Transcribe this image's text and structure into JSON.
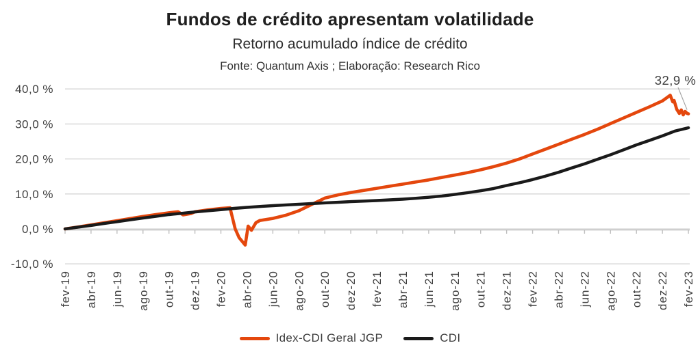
{
  "header": {
    "title": "Fundos de crédito apresentam volatilidade",
    "subtitle": "Retorno acumulado índice de crédito",
    "source": "Fonte: Quantum Axis ; Elaboração: Research Rico"
  },
  "legend": [
    {
      "name": "Idex-CDI Geral JGP",
      "color": "#E4470D"
    },
    {
      "name": "CDI",
      "color": "#1A1A1A"
    }
  ],
  "colors": {
    "gridline": "#DCDCDC",
    "axis": "#BFBFBF",
    "axis_text": "#404040",
    "leader_line": "#A6A6A6"
  },
  "chart_data": {
    "type": "line",
    "title": "Fundos de crédito apresentam volatilidade",
    "subtitle": "Retorno acumulado índice de crédito",
    "source": "Fonte: Quantum Axis ; Elaboração: Research Rico",
    "x_unit": "months since fev-19 (0 = fev-19, 48 = fev-23)",
    "y_unit": "cumulative return, %",
    "ylim": [
      -10,
      40
    ],
    "grid": "horizontal-only",
    "legend_position": "bottom",
    "x_tick_labels": [
      "fev-19",
      "abr-19",
      "jun-19",
      "ago-19",
      "out-19",
      "dez-19",
      "fev-20",
      "abr-20",
      "jun-20",
      "ago-20",
      "out-20",
      "dez-20",
      "fev-21",
      "abr-21",
      "jun-21",
      "ago-21",
      "out-21",
      "dez-21",
      "fev-22",
      "abr-22",
      "jun-22",
      "ago-22",
      "out-22",
      "dez-22",
      "fev-23"
    ],
    "y_ticks": [
      {
        "value": 40,
        "label": "40,0 %"
      },
      {
        "value": 30,
        "label": "30,0 %"
      },
      {
        "value": 20,
        "label": "20,0 %"
      },
      {
        "value": 10,
        "label": "10,0 %"
      },
      {
        "value": 0,
        "label": "0,0 %"
      },
      {
        "value": -10,
        "label": "-10,0 %"
      }
    ],
    "annotation": {
      "text": "32,9 %",
      "x": 48,
      "y": 32.9
    },
    "series": [
      {
        "name": "Idex-CDI Geral JGP",
        "color": "#E4470D",
        "width": 4.6,
        "points": [
          [
            0,
            0
          ],
          [
            1,
            0.55
          ],
          [
            2,
            1.15
          ],
          [
            3,
            1.75
          ],
          [
            4,
            2.35
          ],
          [
            5,
            2.95
          ],
          [
            6,
            3.55
          ],
          [
            7,
            4.1
          ],
          [
            8,
            4.6
          ],
          [
            8.7,
            4.9
          ],
          [
            9.1,
            4.0
          ],
          [
            9.7,
            4.4
          ],
          [
            10,
            4.9
          ],
          [
            11,
            5.45
          ],
          [
            12,
            5.85
          ],
          [
            12.7,
            6.05
          ],
          [
            13.1,
            0.0
          ],
          [
            13.4,
            -2.5
          ],
          [
            13.87,
            -4.6
          ],
          [
            14.1,
            0.8
          ],
          [
            14.35,
            -0.4
          ],
          [
            14.7,
            1.8
          ],
          [
            15,
            2.4
          ],
          [
            15.5,
            2.7
          ],
          [
            16,
            3.0
          ],
          [
            17,
            3.9
          ],
          [
            18,
            5.2
          ],
          [
            19,
            7.0
          ],
          [
            20,
            8.8
          ],
          [
            21,
            9.7
          ],
          [
            22,
            10.4
          ],
          [
            23,
            11.0
          ],
          [
            24,
            11.6
          ],
          [
            25,
            12.2
          ],
          [
            26,
            12.8
          ],
          [
            27,
            13.4
          ],
          [
            28,
            14.0
          ],
          [
            29,
            14.7
          ],
          [
            30,
            15.4
          ],
          [
            31,
            16.1
          ],
          [
            32,
            16.9
          ],
          [
            33,
            17.8
          ],
          [
            34,
            18.8
          ],
          [
            35,
            20.0
          ],
          [
            36,
            21.4
          ],
          [
            37,
            22.8
          ],
          [
            38,
            24.2
          ],
          [
            39,
            25.6
          ],
          [
            40,
            27.0
          ],
          [
            41,
            28.5
          ],
          [
            42,
            30.1
          ],
          [
            43,
            31.7
          ],
          [
            44,
            33.3
          ],
          [
            45,
            34.9
          ],
          [
            46,
            36.6
          ],
          [
            46.6,
            38.2
          ],
          [
            46.8,
            36.3
          ],
          [
            46.9,
            36.7
          ],
          [
            47.1,
            34.2
          ],
          [
            47.3,
            33.0
          ],
          [
            47.45,
            34.0
          ],
          [
            47.6,
            32.6
          ],
          [
            47.75,
            33.6
          ],
          [
            47.9,
            33.0
          ],
          [
            48,
            32.9
          ]
        ]
      },
      {
        "name": "CDI",
        "color": "#1A1A1A",
        "width": 4.4,
        "points": [
          [
            0,
            0
          ],
          [
            1,
            0.5
          ],
          [
            2,
            1.0
          ],
          [
            3,
            1.55
          ],
          [
            4,
            2.05
          ],
          [
            5,
            2.6
          ],
          [
            6,
            3.1
          ],
          [
            7,
            3.6
          ],
          [
            8,
            4.1
          ],
          [
            9,
            4.45
          ],
          [
            10,
            4.85
          ],
          [
            11,
            5.2
          ],
          [
            12,
            5.5
          ],
          [
            13,
            5.85
          ],
          [
            14,
            6.15
          ],
          [
            15,
            6.4
          ],
          [
            16,
            6.65
          ],
          [
            17,
            6.85
          ],
          [
            18,
            7.05
          ],
          [
            19,
            7.25
          ],
          [
            20,
            7.45
          ],
          [
            21,
            7.6
          ],
          [
            22,
            7.8
          ],
          [
            23,
            7.95
          ],
          [
            24,
            8.1
          ],
          [
            25,
            8.3
          ],
          [
            26,
            8.5
          ],
          [
            27,
            8.75
          ],
          [
            28,
            9.05
          ],
          [
            29,
            9.4
          ],
          [
            30,
            9.85
          ],
          [
            31,
            10.35
          ],
          [
            32,
            10.9
          ],
          [
            33,
            11.55
          ],
          [
            34,
            12.4
          ],
          [
            35,
            13.2
          ],
          [
            36,
            14.1
          ],
          [
            37,
            15.1
          ],
          [
            38,
            16.2
          ],
          [
            39,
            17.4
          ],
          [
            40,
            18.6
          ],
          [
            41,
            19.9
          ],
          [
            42,
            21.2
          ],
          [
            43,
            22.6
          ],
          [
            44,
            24.0
          ],
          [
            45,
            25.3
          ],
          [
            46,
            26.6
          ],
          [
            47,
            28.0
          ],
          [
            48,
            28.9
          ]
        ]
      }
    ]
  }
}
